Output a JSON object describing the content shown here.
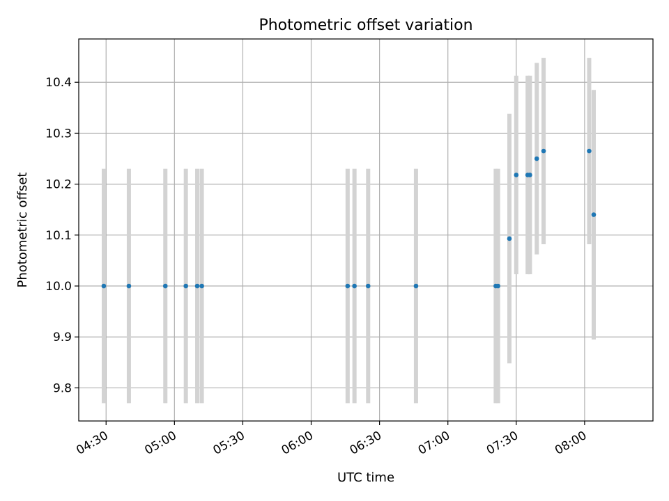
{
  "chart_data": {
    "type": "scatter",
    "title": "Photometric offset variation",
    "xlabel": "UTC time",
    "ylabel": "Photometric offset",
    "x_unit": "time (HH:MM)",
    "xlim": [
      "04:18",
      "08:30"
    ],
    "ylim": [
      9.735,
      10.485
    ],
    "xticks": [
      "04:30",
      "05:00",
      "05:30",
      "06:00",
      "06:30",
      "07:00",
      "07:30",
      "08:00"
    ],
    "yticks": [
      9.8,
      9.9,
      10.0,
      10.1,
      10.2,
      10.3,
      10.4
    ],
    "ytick_labels": [
      "9.8",
      "9.9",
      "10.0",
      "10.1",
      "10.2",
      "10.3",
      "10.4"
    ],
    "grid": true,
    "marker_color": "#1f77b4",
    "errorbar_color": "#d3d3d3",
    "series": [
      {
        "points": [
          {
            "x": "04:29",
            "y": 10.0,
            "yerr": 0.23
          },
          {
            "x": "04:40",
            "y": 10.0,
            "yerr": 0.23
          },
          {
            "x": "04:56",
            "y": 10.0,
            "yerr": 0.23
          },
          {
            "x": "05:05",
            "y": 10.0,
            "yerr": 0.23
          },
          {
            "x": "05:10",
            "y": 10.0,
            "yerr": 0.23
          },
          {
            "x": "05:12",
            "y": 10.0,
            "yerr": 0.23
          },
          {
            "x": "06:16",
            "y": 10.0,
            "yerr": 0.23
          },
          {
            "x": "06:19",
            "y": 10.0,
            "yerr": 0.23
          },
          {
            "x": "06:25",
            "y": 10.0,
            "yerr": 0.23
          },
          {
            "x": "06:46",
            "y": 10.0,
            "yerr": 0.23
          },
          {
            "x": "07:21",
            "y": 10.0,
            "yerr": 0.23
          },
          {
            "x": "07:22",
            "y": 10.0,
            "yerr": 0.23
          },
          {
            "x": "07:27",
            "y": 10.093,
            "yerr": 0.245
          },
          {
            "x": "07:30",
            "y": 10.218,
            "yerr": 0.195
          },
          {
            "x": "07:35",
            "y": 10.218,
            "yerr": 0.195
          },
          {
            "x": "07:36",
            "y": 10.218,
            "yerr": 0.195
          },
          {
            "x": "07:39",
            "y": 10.25,
            "yerr": 0.188
          },
          {
            "x": "07:42",
            "y": 10.265,
            "yerr": 0.183
          },
          {
            "x": "08:02",
            "y": 10.265,
            "yerr": 0.183
          },
          {
            "x": "08:04",
            "y": 10.14,
            "yerr": 0.245
          }
        ]
      }
    ]
  }
}
